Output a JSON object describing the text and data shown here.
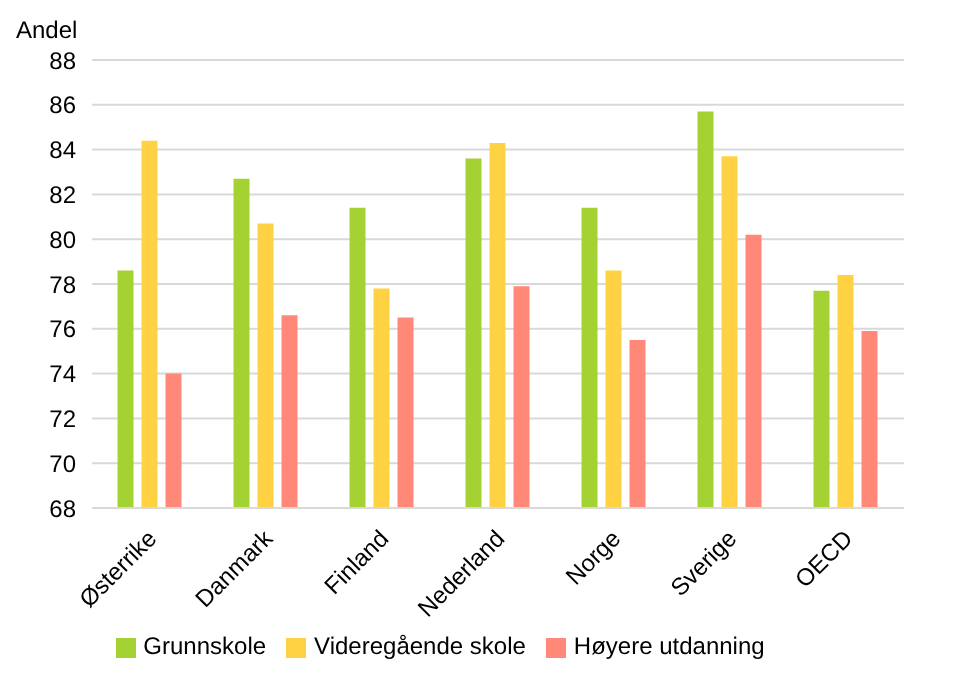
{
  "chart_data": {
    "type": "bar",
    "ylabel": "Andel",
    "categories": [
      "Østerrike",
      "Danmark",
      "Finland",
      "Nederland",
      "Norge",
      "Sverige",
      "OECD"
    ],
    "series": [
      {
        "name": "Grunnskole",
        "color": "#a5d233",
        "values": [
          78.6,
          82.7,
          81.4,
          83.6,
          81.4,
          85.7,
          77.7
        ]
      },
      {
        "name": "Videregående skole",
        "color": "#ffd243",
        "values": [
          84.4,
          80.7,
          77.8,
          84.3,
          78.6,
          83.7,
          78.4
        ]
      },
      {
        "name": "Høyere utdanning",
        "color": "#ff8878",
        "values": [
          74.0,
          76.6,
          76.5,
          77.9,
          75.5,
          80.2,
          75.9
        ]
      }
    ],
    "ylim": [
      68,
      88
    ],
    "yticks": [
      68,
      70,
      72,
      74,
      76,
      78,
      80,
      82,
      84,
      86,
      88
    ],
    "grid": "y",
    "legend": "bottom"
  }
}
